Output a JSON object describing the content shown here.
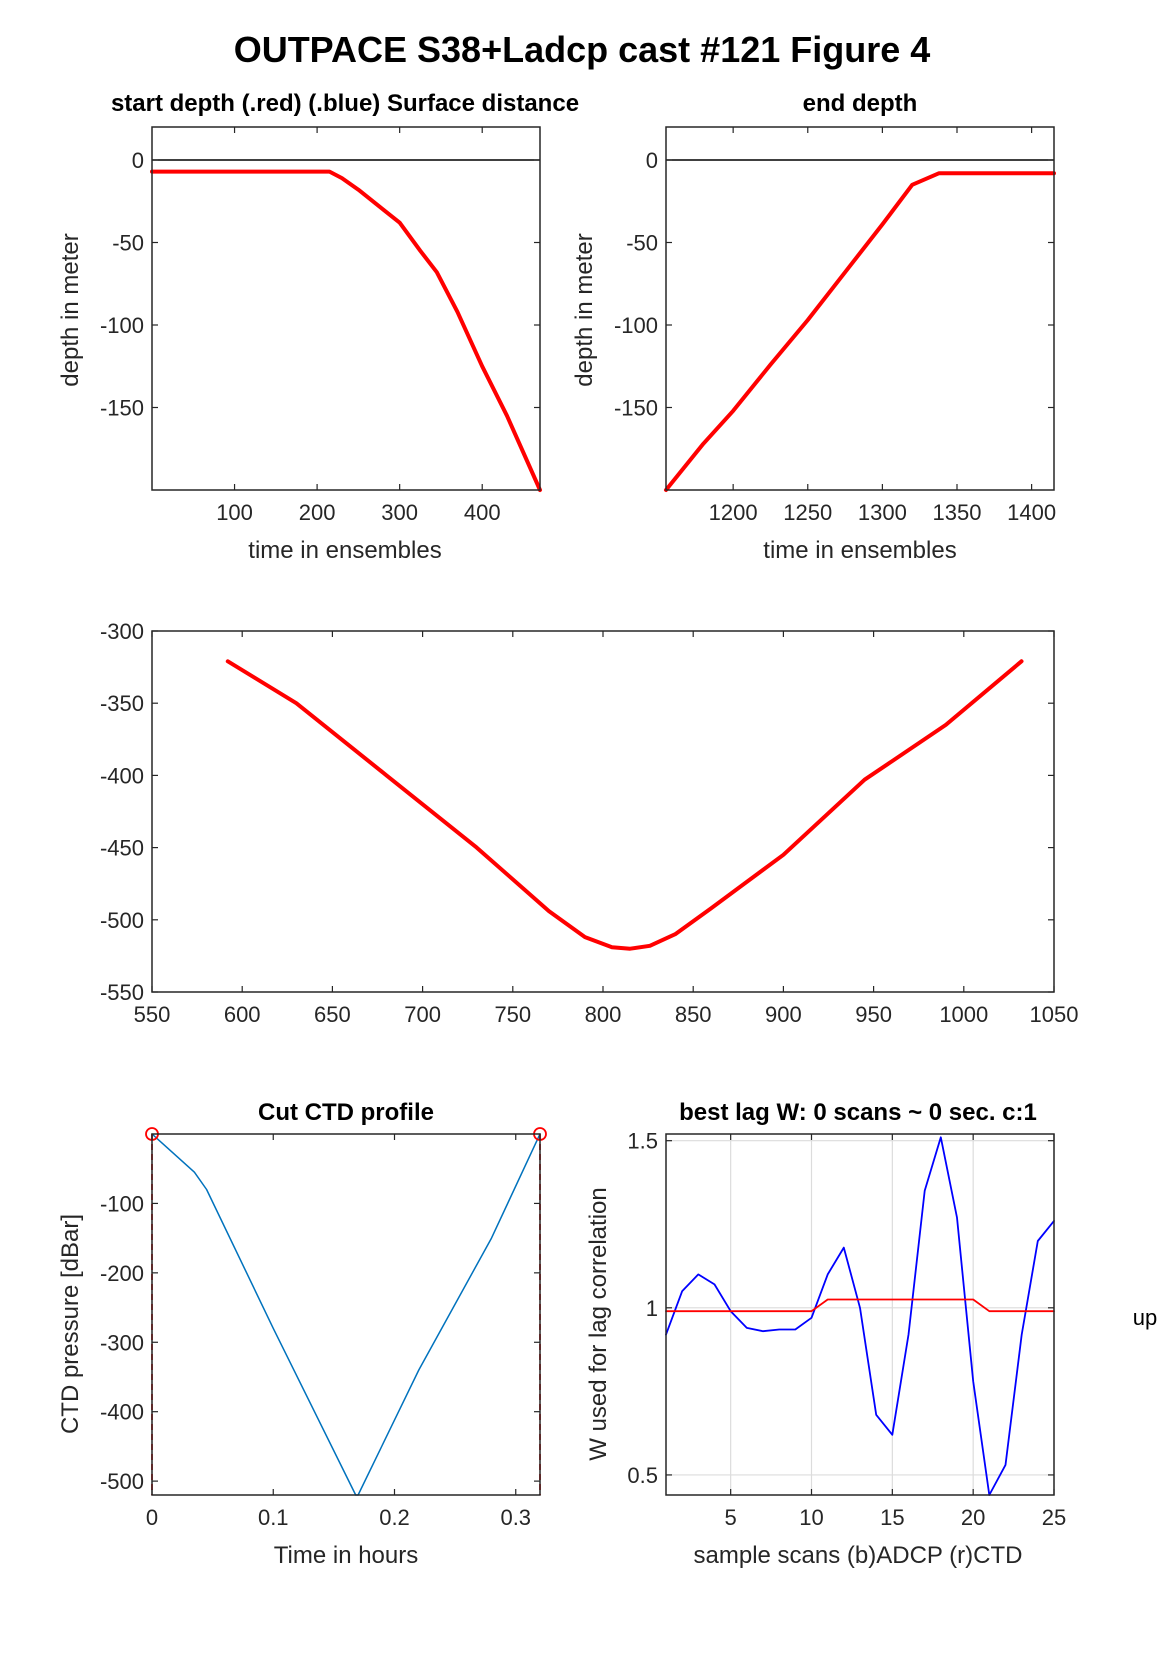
{
  "figure": {
    "title": "OUTPACE S38+Ladcp cast #121    Figure 4",
    "side_text": "up"
  },
  "chart_data": [
    {
      "id": "start",
      "type": "line",
      "title": "start depth (.red) (.blue) Surface distance",
      "xlabel": "time in ensembles",
      "ylabel": "depth in meter",
      "xlim": [
        0,
        470
      ],
      "ylim": [
        -200,
        20
      ],
      "xticks": [
        100,
        200,
        300,
        400
      ],
      "yticks": [
        0,
        -50,
        -100,
        -150
      ],
      "grid": false,
      "reference_lines": [
        {
          "y": 0,
          "color": "#000000"
        }
      ],
      "series": [
        {
          "color": "#ff0000",
          "x": [
            0,
            50,
            100,
            150,
            200,
            215,
            230,
            250,
            275,
            300,
            325,
            345,
            370,
            400,
            430,
            470
          ],
          "y": [
            -7,
            -7,
            -7,
            -7,
            -7,
            -7,
            -11,
            -18,
            -28,
            -38,
            -55,
            -68,
            -92,
            -125,
            -155,
            -200
          ]
        }
      ]
    },
    {
      "id": "end",
      "type": "line",
      "title": "end depth",
      "xlabel": "time in ensembles",
      "ylabel": "depth in meter",
      "xlim": [
        1155,
        1415
      ],
      "ylim": [
        -200,
        20
      ],
      "xticks": [
        1200,
        1250,
        1300,
        1350,
        1400
      ],
      "yticks": [
        0,
        -50,
        -100,
        -150
      ],
      "grid": false,
      "reference_lines": [
        {
          "y": 0,
          "color": "#000000"
        }
      ],
      "series": [
        {
          "color": "#ff0000",
          "x": [
            1155,
            1180,
            1200,
            1225,
            1250,
            1275,
            1300,
            1320,
            1338,
            1348,
            1370,
            1415
          ],
          "y": [
            -200,
            -172,
            -152,
            -124,
            -97,
            -68,
            -39,
            -15,
            -8,
            -8,
            -8,
            -8
          ]
        }
      ]
    },
    {
      "id": "middle",
      "type": "line",
      "title": "",
      "xlabel": "",
      "ylabel": "",
      "xlim": [
        550,
        1050
      ],
      "ylim": [
        -550,
        -300
      ],
      "xticks": [
        550,
        600,
        650,
        700,
        750,
        800,
        850,
        900,
        950,
        1000,
        1050
      ],
      "yticks": [
        -300,
        -350,
        -400,
        -450,
        -500,
        -550
      ],
      "grid": false,
      "series": [
        {
          "color": "#ff0000",
          "x": [
            592,
            630,
            680,
            730,
            770,
            790,
            805,
            815,
            826,
            840,
            860,
            900,
            945,
            990,
            1032
          ],
          "y": [
            -321,
            -350,
            -400,
            -450,
            -494,
            -512,
            -519,
            -520,
            -518,
            -510,
            -492,
            -455,
            -403,
            -365,
            -321
          ]
        }
      ]
    },
    {
      "id": "ctd",
      "type": "line",
      "title": "Cut CTD profile",
      "xlabel": "Time in hours",
      "ylabel": "CTD pressure [dBar]",
      "xlim": [
        0,
        0.32
      ],
      "ylim": [
        -520,
        0
      ],
      "xticks": [
        0,
        0.1,
        0.2,
        0.3
      ],
      "yticks": [
        -100,
        -200,
        -300,
        -400,
        -500
      ],
      "grid": false,
      "series": [
        {
          "color": "#0072bd",
          "x": [
            0,
            0.035,
            0.045,
            0.1,
            0.168,
            0.17,
            0.22,
            0.28,
            0.32
          ],
          "y": [
            0,
            -55,
            -80,
            -280,
            -520,
            -520,
            -340,
            -150,
            0
          ]
        }
      ],
      "vertical_lines": [
        {
          "x": 0,
          "color": "#ff0000",
          "dashed": true
        },
        {
          "x": 0.32,
          "color": "#ff0000",
          "dashed": true
        }
      ],
      "markers": [
        {
          "x": 0,
          "y": 0,
          "color": "#ff0000"
        },
        {
          "x": 0.32,
          "y": 0,
          "color": "#ff0000"
        }
      ]
    },
    {
      "id": "lag",
      "type": "line",
      "title": "best lag W: 0 scans ~ 0 sec.  c:1",
      "xlabel": "sample scans (b)ADCP (r)CTD",
      "ylabel": "W used for lag correlation",
      "xlim": [
        1,
        25
      ],
      "ylim": [
        0.44,
        1.52
      ],
      "xticks": [
        5,
        10,
        15,
        20,
        25
      ],
      "yticks": [
        0.5,
        1,
        1.5
      ],
      "grid": true,
      "series": [
        {
          "color": "#0000ff",
          "x": [
            1,
            2,
            3,
            4,
            5,
            6,
            7,
            8,
            9,
            10,
            11,
            12,
            13,
            14,
            15,
            16,
            17,
            18,
            19,
            20,
            21,
            22,
            23,
            24,
            25
          ],
          "y": [
            0.92,
            1.05,
            1.1,
            1.07,
            0.99,
            0.94,
            0.93,
            0.935,
            0.935,
            0.97,
            1.1,
            1.18,
            1.0,
            0.68,
            0.62,
            0.92,
            1.35,
            1.51,
            1.27,
            0.78,
            0.44,
            0.53,
            0.92,
            1.2,
            1.26
          ]
        },
        {
          "color": "#ff0000",
          "x": [
            1,
            10,
            11,
            20,
            21,
            25
          ],
          "y": [
            0.99,
            0.99,
            1.025,
            1.025,
            0.99,
            0.99
          ]
        }
      ]
    }
  ]
}
